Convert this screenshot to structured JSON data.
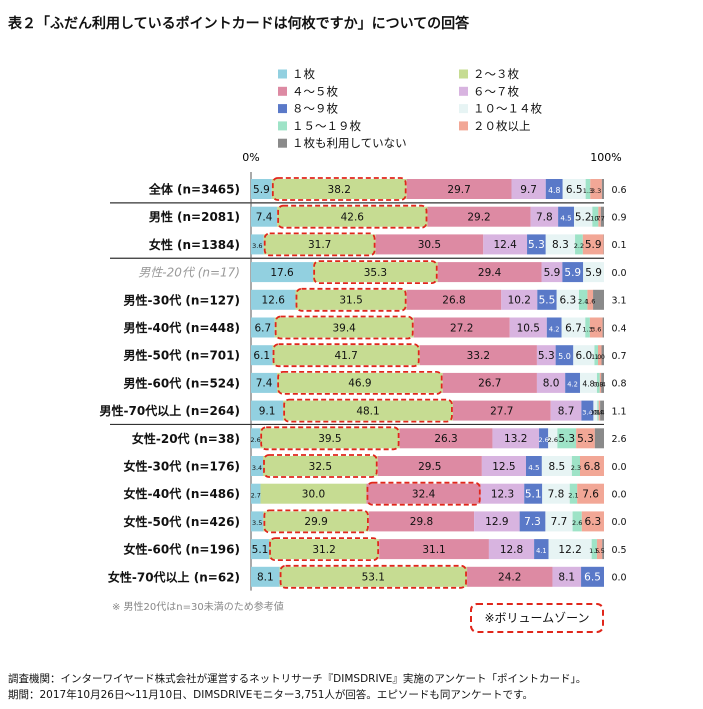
{
  "title": "表２「ふだん利用しているポイントカードは何枚ですか」についての回答",
  "footnote": "※ 男性20代はn=30未満のため参考値",
  "volume_zone_label": "※ボリュームゾーン",
  "survey_info": [
    "調査機関：インターワイヤード株式会社が運営するネットリサーチ『DIMSDRIVE』実施のアンケート「ポイントカード」。",
    "期間：2017年10月26日〜11月10日、DIMSDRIVEモニター3,751人が回答。エピソードも同アンケートです。"
  ],
  "chart_data": {
    "type": "bar",
    "orientation": "horizontal",
    "stacked": "percent",
    "axis_labels": [
      "0%",
      "100%"
    ],
    "xlim": [
      0,
      100
    ],
    "legend": "top",
    "series": [
      {
        "name": "１枚",
        "color": "#92d0e0",
        "label_color": "#111111"
      },
      {
        "name": "２〜３枚",
        "color": "#c6dc92",
        "label_color": "#111111"
      },
      {
        "name": "４〜５枚",
        "color": "#dd8aa3",
        "label_color": "#111111"
      },
      {
        "name": "６〜７枚",
        "color": "#d8b4e0",
        "label_color": "#111111"
      },
      {
        "name": "８〜９枚",
        "color": "#5a79c8",
        "label_color": "#ffffff"
      },
      {
        "name": "１０〜１４枚",
        "color": "#e7f4f4",
        "label_color": "#111111"
      },
      {
        "name": "１５〜１９枚",
        "color": "#9ee3c7",
        "label_color": "#111111"
      },
      {
        "name": "２０枚以上",
        "color": "#f2a796",
        "label_color": "#111111"
      },
      {
        "name": "１枚も利用していない",
        "color": "#8a8a8a",
        "label_color": "#111111"
      }
    ],
    "rows": [
      {
        "label": "全体 (n=3465)",
        "values": [
          5.9,
          38.2,
          29.7,
          9.7,
          4.8,
          6.5,
          1.3,
          3.3,
          0.6
        ],
        "highlight": 1
      },
      {
        "label": "男性 (n=2081)",
        "values": [
          7.4,
          42.6,
          29.2,
          7.8,
          4.5,
          5.2,
          1.7,
          0.7,
          0.9
        ],
        "highlight": 1
      },
      {
        "label": "女性 (n=1384)",
        "values": [
          3.6,
          31.7,
          30.5,
          12.4,
          5.3,
          8.3,
          2.2,
          5.9,
          0.1
        ],
        "highlight": 1
      },
      {
        "label": "男性-20代 (n=17)",
        "values": [
          17.6,
          35.3,
          29.4,
          5.9,
          5.9,
          5.9,
          0.0,
          0.0,
          0.0
        ],
        "highlight": 1,
        "reference": true
      },
      {
        "label": "男性-30代 (n=127)",
        "values": [
          12.6,
          31.5,
          26.8,
          10.2,
          5.5,
          6.3,
          2.4,
          1.6,
          3.1
        ],
        "highlight": 1
      },
      {
        "label": "男性-40代 (n=448)",
        "values": [
          6.7,
          39.4,
          27.2,
          10.5,
          4.2,
          6.7,
          1.3,
          3.6,
          0.4
        ],
        "highlight": 1
      },
      {
        "label": "男性-50代 (n=701)",
        "values": [
          6.1,
          41.7,
          33.2,
          5.3,
          5.0,
          6.0,
          1.0,
          1.0,
          0.7
        ],
        "highlight": 1
      },
      {
        "label": "男性-60代 (n=524)",
        "values": [
          7.4,
          46.9,
          26.7,
          8.0,
          4.2,
          4.8,
          0.8,
          0.4,
          0.8
        ],
        "highlight": 1
      },
      {
        "label": "男性-70代以上 (n=264)",
        "values": [
          9.1,
          48.1,
          27.7,
          8.7,
          3.4,
          1.1,
          0.4,
          0.4,
          1.1
        ],
        "highlight": 1
      },
      {
        "label": "女性-20代 (n=38)",
        "values": [
          2.6,
          39.5,
          26.3,
          13.2,
          2.6,
          2.6,
          5.3,
          5.3,
          2.6
        ],
        "highlight": 1
      },
      {
        "label": "女性-30代 (n=176)",
        "values": [
          3.4,
          32.5,
          29.5,
          12.5,
          4.5,
          8.5,
          2.3,
          6.8,
          0.0
        ],
        "highlight": 1
      },
      {
        "label": "女性-40代 (n=486)",
        "values": [
          2.7,
          30.0,
          32.4,
          12.3,
          5.1,
          7.8,
          2.1,
          7.6,
          0.0
        ],
        "highlight": 2
      },
      {
        "label": "女性-50代 (n=426)",
        "values": [
          3.5,
          29.9,
          29.8,
          12.9,
          7.3,
          7.7,
          2.6,
          6.3,
          0.0
        ],
        "highlight": 1
      },
      {
        "label": "女性-60代 (n=196)",
        "values": [
          5.1,
          31.2,
          31.1,
          12.8,
          4.1,
          12.2,
          1.5,
          1.5,
          0.5
        ],
        "highlight": 1
      },
      {
        "label": "女性-70代以上 (n=62)",
        "values": [
          8.1,
          53.1,
          24.2,
          8.1,
          6.5,
          0.0,
          0.0,
          0.0,
          0.0
        ],
        "highlight": 1
      }
    ],
    "colors": {
      "highlight": "#e0261b",
      "separator": "#333333",
      "reference_label": "#9a9a9a"
    }
  }
}
